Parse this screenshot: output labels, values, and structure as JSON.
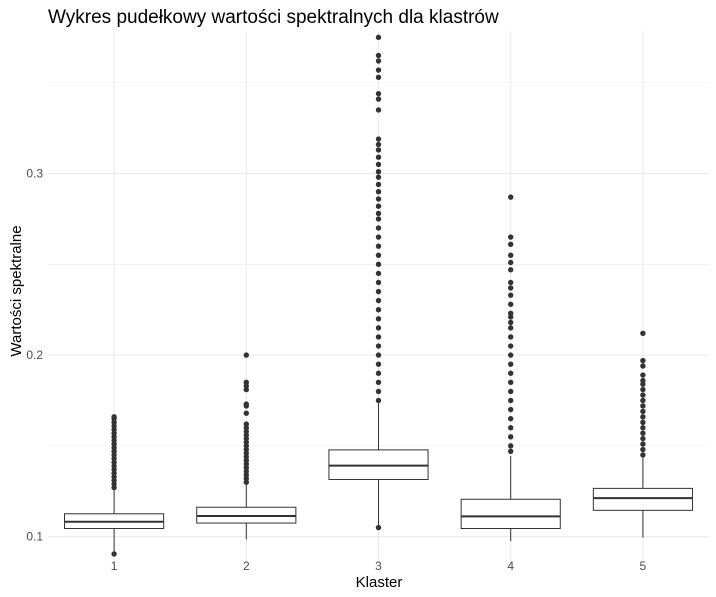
{
  "chart_data": {
    "type": "boxplot",
    "title": "Wykres pudełkowy wartości spektralnych dla klastrów",
    "xlabel": "Klaster",
    "ylabel": "Wartości spektralne",
    "categories": [
      "1",
      "2",
      "3",
      "4",
      "5"
    ],
    "y_ticks": [
      0.1,
      0.2,
      0.3
    ],
    "y_tick_labels": [
      "0.1",
      "0.2",
      "0.3"
    ],
    "ylim": [
      0.0855,
      0.3785
    ],
    "grid": true,
    "legend": "none",
    "colors": {
      "box_stroke": "#333333",
      "outlier": "#333333",
      "grid": "#ebebeb",
      "background": "#ffffff"
    },
    "boxes": [
      {
        "category": "1",
        "whisker_low": 0.0905,
        "q1": 0.1045,
        "median": 0.1082,
        "q3": 0.1126,
        "whisker_high": 0.1255,
        "outliers": [
          0.0905,
          0.127,
          0.129,
          0.131,
          0.133,
          0.135,
          0.137,
          0.139,
          0.141,
          0.143,
          0.145,
          0.147,
          0.149,
          0.151,
          0.153,
          0.155,
          0.157,
          0.159,
          0.161,
          0.163,
          0.165,
          0.166
        ]
      },
      {
        "category": "2",
        "whisker_low": 0.0985,
        "q1": 0.1075,
        "median": 0.1114,
        "q3": 0.1162,
        "whisker_high": 0.1285,
        "outliers": [
          0.13,
          0.132,
          0.134,
          0.136,
          0.138,
          0.14,
          0.142,
          0.144,
          0.146,
          0.148,
          0.15,
          0.152,
          0.154,
          0.156,
          0.158,
          0.16,
          0.162,
          0.168,
          0.172,
          0.173,
          0.181,
          0.183,
          0.185,
          0.2
        ]
      },
      {
        "category": "3",
        "whisker_low": 0.1055,
        "q1": 0.1315,
        "median": 0.1391,
        "q3": 0.1478,
        "whisker_high": 0.1735,
        "outliers": [
          0.175,
          0.18,
          0.185,
          0.19,
          0.195,
          0.2,
          0.205,
          0.21,
          0.215,
          0.22,
          0.225,
          0.23,
          0.235,
          0.24,
          0.245,
          0.25,
          0.255,
          0.26,
          0.265,
          0.27,
          0.275,
          0.278,
          0.282,
          0.286,
          0.29,
          0.294,
          0.298,
          0.301,
          0.305,
          0.309,
          0.313,
          0.316,
          0.319,
          0.335,
          0.341,
          0.344,
          0.353,
          0.357,
          0.362,
          0.365,
          0.375,
          0.105
        ]
      },
      {
        "category": "4",
        "whisker_low": 0.0975,
        "q1": 0.1045,
        "median": 0.1112,
        "q3": 0.1206,
        "whisker_high": 0.1445,
        "outliers": [
          0.147,
          0.15,
          0.155,
          0.16,
          0.165,
          0.17,
          0.175,
          0.18,
          0.185,
          0.19,
          0.195,
          0.2,
          0.205,
          0.21,
          0.215,
          0.218,
          0.221,
          0.223,
          0.228,
          0.233,
          0.237,
          0.24,
          0.247,
          0.251,
          0.255,
          0.261,
          0.265,
          0.287
        ]
      },
      {
        "category": "5",
        "whisker_low": 0.0995,
        "q1": 0.1145,
        "median": 0.1212,
        "q3": 0.1266,
        "whisker_high": 0.1435,
        "outliers": [
          0.145,
          0.148,
          0.151,
          0.154,
          0.157,
          0.16,
          0.163,
          0.166,
          0.169,
          0.172,
          0.175,
          0.178,
          0.181,
          0.184,
          0.186,
          0.189,
          0.194,
          0.197,
          0.212
        ]
      }
    ]
  }
}
